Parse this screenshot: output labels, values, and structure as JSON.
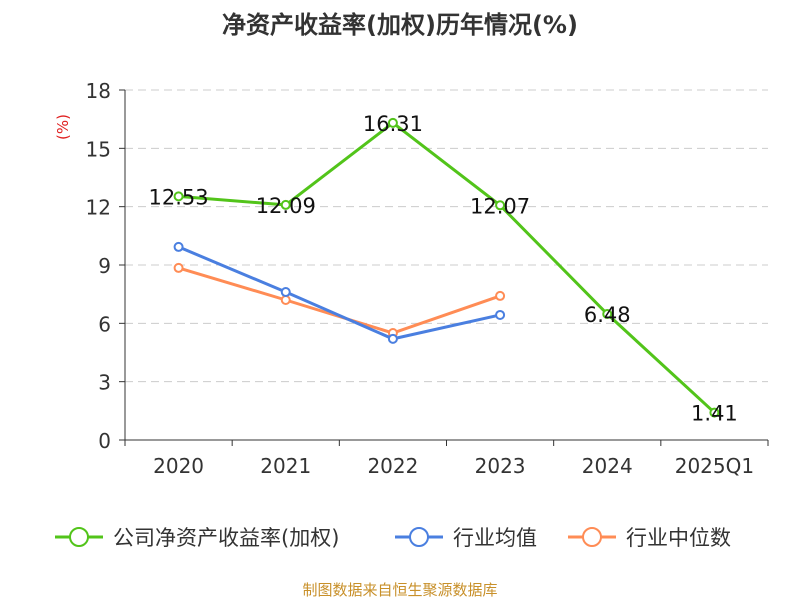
{
  "chart_data": {
    "type": "line",
    "title": "净资产收益率(加权)历年情况(%)",
    "ylabel": "(%)",
    "xlabel": "",
    "categories": [
      "2020",
      "2021",
      "2022",
      "2023",
      "2024",
      "2025Q1"
    ],
    "ylim": [
      0,
      18
    ],
    "yticks": [
      0,
      3,
      6,
      9,
      12,
      15,
      18
    ],
    "grid": true,
    "legend_position": "bottom",
    "series": [
      {
        "name": "公司净资产收益率(加权)",
        "color": "#52c41a",
        "values": [
          12.53,
          12.09,
          16.31,
          12.07,
          6.48,
          1.41
        ],
        "labels": [
          "12.53",
          "12.09",
          "16.31",
          "12.07",
          "6.48",
          "1.41"
        ]
      },
      {
        "name": "行业均值",
        "color": "#4a7fe0",
        "values": [
          9.93,
          7.61,
          5.2,
          6.43,
          null,
          null
        ]
      },
      {
        "name": "行业中位数",
        "color": "#ff8c55",
        "values": [
          8.85,
          7.2,
          5.5,
          7.41,
          null,
          null
        ]
      }
    ]
  },
  "footer": "制图数据来自恒生聚源数据库"
}
